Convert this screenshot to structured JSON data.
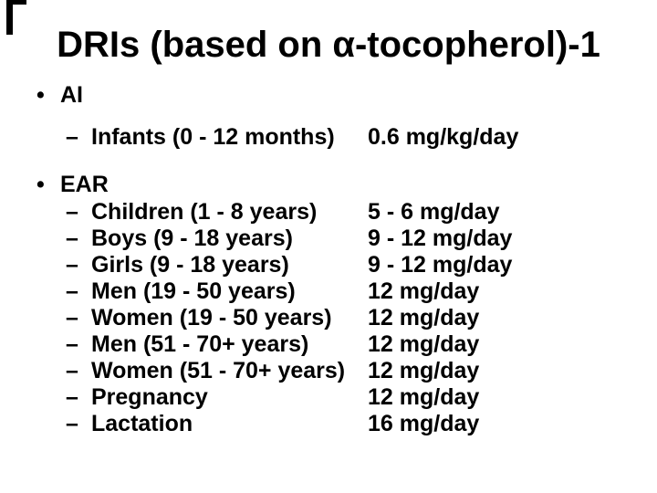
{
  "slide": {
    "title": "DRIs (based on α-tocopherol)-1",
    "bullet_char": "•",
    "dash_char": "–",
    "colors": {
      "background": "#ffffff",
      "text": "#000000"
    },
    "sections": [
      {
        "label": "AI",
        "rows": [
          {
            "item": "Infants (0 - 12 months)",
            "value": "0.6 mg/kg/day"
          }
        ]
      },
      {
        "label": "EAR",
        "rows": [
          {
            "item": "Children (1 - 8 years)",
            "value": "5 - 6 mg/day"
          },
          {
            "item": "Boys (9 - 18 years)",
            "value": "9 - 12 mg/day"
          },
          {
            "item": "Girls (9 - 18 years)",
            "value": "9 - 12 mg/day"
          },
          {
            "item": "Men (19 - 50 years)",
            "value": "12 mg/day"
          },
          {
            "item": "Women (19 - 50 years)",
            "value": "12 mg/day"
          },
          {
            "item": "Men (51 - 70+ years)",
            "value": "12 mg/day"
          },
          {
            "item": "Women (51 - 70+ years)",
            "value": "12 mg/day"
          },
          {
            "item": "Pregnancy",
            "value": "12 mg/day"
          },
          {
            "item": "Lactation",
            "value": "16 mg/day"
          }
        ]
      }
    ]
  }
}
